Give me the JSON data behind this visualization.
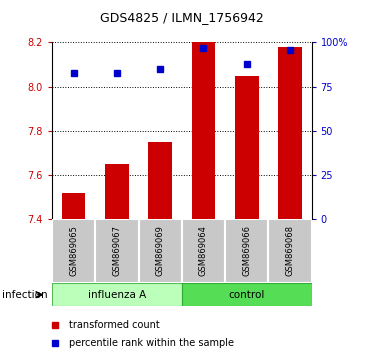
{
  "title": "GDS4825 / ILMN_1756942",
  "categories": [
    "GSM869065",
    "GSM869067",
    "GSM869069",
    "GSM869064",
    "GSM869066",
    "GSM869068"
  ],
  "bar_values": [
    7.52,
    7.65,
    7.75,
    8.2,
    8.05,
    8.18
  ],
  "percentile_values": [
    83,
    83,
    85,
    97,
    88,
    96
  ],
  "bar_color": "#cc0000",
  "dot_color": "#0000cc",
  "ylim_left": [
    7.4,
    8.2
  ],
  "ylim_right": [
    0,
    100
  ],
  "yticks_left": [
    7.4,
    7.6,
    7.8,
    8.0,
    8.2
  ],
  "yticks_right": [
    0,
    25,
    50,
    75,
    100
  ],
  "ytick_labels_right": [
    "0",
    "25",
    "50",
    "75",
    "100%"
  ],
  "groups": [
    {
      "label": "influenza A",
      "color_light": "#ccffcc",
      "color_dark": "#66dd66"
    },
    {
      "label": "control",
      "color_light": "#44ee44",
      "color_dark": "#33cc33"
    }
  ],
  "group_row_label": "infection",
  "legend_items": [
    {
      "label": "transformed count",
      "color": "#cc0000"
    },
    {
      "label": "percentile rank within the sample",
      "color": "#0000cc"
    }
  ],
  "bar_bottom": 7.4,
  "bar_width": 0.55,
  "tick_label_color_left": "#cc0000",
  "tick_label_color_right": "#0000cc",
  "title_fontsize": 9,
  "axis_fontsize": 7,
  "label_fontsize": 6,
  "group_fontsize": 7.5,
  "legend_fontsize": 7
}
